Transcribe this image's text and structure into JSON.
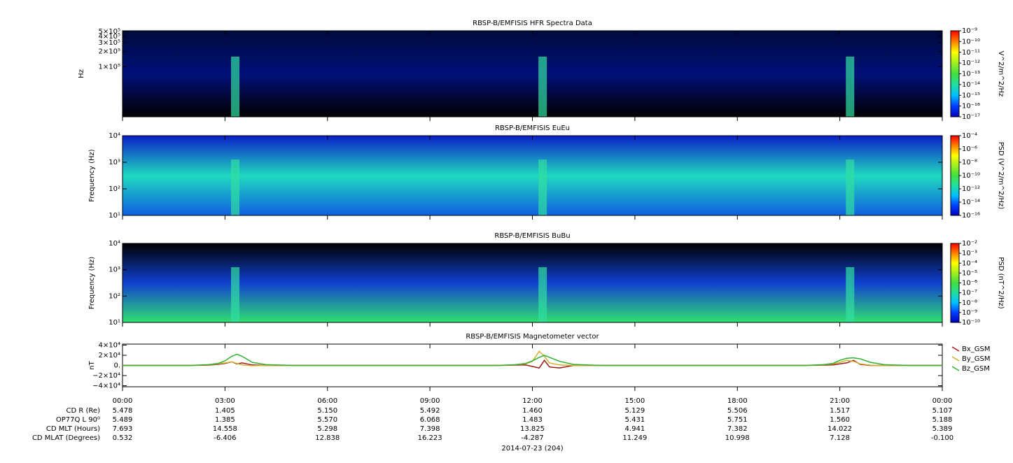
{
  "chart_data": [
    {
      "type": "spectrogram",
      "title": "RBSP-B/EMFISIS  HFR Spectra Data",
      "ylabel": "Hz",
      "log": true,
      "ylim": [
        10000,
        520000
      ],
      "yticks": [
        {
          "value": 100000,
          "label": "1×10⁵"
        },
        {
          "value": 200000,
          "label": "2×10⁵"
        },
        {
          "value": 300000,
          "label": "3×10⁵"
        },
        {
          "value": 400000,
          "label": "4×10⁵"
        },
        {
          "value": 500000,
          "label": "5×10⁵"
        }
      ],
      "colorbar": {
        "label": "V^2/m^2/Hz",
        "clim": [
          1e-17,
          1e-09
        ],
        "ticks": [
          {
            "value": 1e-17,
            "label": "10⁻¹⁷"
          },
          {
            "value": 1e-16,
            "label": "10⁻¹⁶"
          },
          {
            "value": 1e-15,
            "label": "10⁻¹⁵"
          },
          {
            "value": 1e-14,
            "label": "10⁻¹⁴"
          },
          {
            "value": 1e-13,
            "label": "10⁻¹³"
          },
          {
            "value": 1e-12,
            "label": "10⁻¹²"
          },
          {
            "value": 1e-11,
            "label": "10⁻¹¹"
          },
          {
            "value": 1e-10,
            "label": "10⁻¹⁰"
          },
          {
            "value": 1e-09,
            "label": "10⁻⁹"
          }
        ]
      },
      "background": [
        "#000a3a",
        "#00107a",
        "#000000"
      ]
    },
    {
      "type": "spectrogram",
      "title": "RBSP-B/EMFISIS  EuEu",
      "ylabel": "Frequency (Hz)",
      "log": true,
      "ylim": [
        10,
        10000
      ],
      "yticks": [
        {
          "value": 10,
          "label": "10¹"
        },
        {
          "value": 100,
          "label": "10²"
        },
        {
          "value": 1000,
          "label": "10³"
        },
        {
          "value": 10000,
          "label": "10⁴"
        }
      ],
      "colorbar": {
        "label": "PSD (V^2/m^2/Hz)",
        "clim": [
          1e-16,
          0.0001
        ],
        "ticks": [
          {
            "value": 1e-16,
            "label": "10⁻¹⁶"
          },
          {
            "value": 1e-14,
            "label": "10⁻¹⁴"
          },
          {
            "value": 1e-12,
            "label": "10⁻¹²"
          },
          {
            "value": 1e-10,
            "label": "10⁻¹⁰"
          },
          {
            "value": 1e-08,
            "label": "10⁻⁸"
          },
          {
            "value": 1e-06,
            "label": "10⁻⁶"
          },
          {
            "value": 0.0001,
            "label": "10⁻⁴"
          }
        ]
      },
      "background": [
        "#0a1fc8",
        "#20d8c0",
        "#1060e0"
      ]
    },
    {
      "type": "spectrogram",
      "title": "RBSP-B/EMFISIS  BuBu",
      "ylabel": "Frequency (Hz)",
      "log": true,
      "ylim": [
        10,
        10000
      ],
      "yticks": [
        {
          "value": 10,
          "label": "10¹"
        },
        {
          "value": 100,
          "label": "10²"
        },
        {
          "value": 1000,
          "label": "10³"
        },
        {
          "value": 10000,
          "label": "10⁴"
        }
      ],
      "colorbar": {
        "label": "PSD (nT^2/Hz)",
        "clim": [
          1e-10,
          0.01
        ],
        "ticks": [
          {
            "value": 1e-10,
            "label": "10⁻¹⁰"
          },
          {
            "value": 1e-09,
            "label": "10⁻⁹"
          },
          {
            "value": 1e-08,
            "label": "10⁻⁸"
          },
          {
            "value": 1e-07,
            "label": "10⁻⁷"
          },
          {
            "value": 1e-06,
            "label": "10⁻⁶"
          },
          {
            "value": 1e-05,
            "label": "10⁻⁵"
          },
          {
            "value": 0.0001,
            "label": "10⁻⁴"
          },
          {
            "value": 0.001,
            "label": "10⁻³"
          },
          {
            "value": 0.01,
            "label": "10⁻²"
          }
        ]
      },
      "background": [
        "#000000",
        "#1040d0",
        "#30e070"
      ]
    },
    {
      "type": "line",
      "title": "RBSP-B/EMFISIS  Magnetometer vector",
      "ylabel": "nT",
      "xlabel": "2014-07-23 (204)",
      "xlim": [
        0,
        24
      ],
      "xticks": [
        {
          "value": 0,
          "label": "00:00"
        },
        {
          "value": 3,
          "label": "03:00"
        },
        {
          "value": 6,
          "label": "06:00"
        },
        {
          "value": 9,
          "label": "09:00"
        },
        {
          "value": 12,
          "label": "12:00"
        },
        {
          "value": 15,
          "label": "15:00"
        },
        {
          "value": 18,
          "label": "18:00"
        },
        {
          "value": 21,
          "label": "21:00"
        },
        {
          "value": 24,
          "label": "00:00"
        }
      ],
      "ylim": [
        -42000,
        42000
      ],
      "yticks": [
        {
          "value": -40000,
          "label": "−4×10⁴"
        },
        {
          "value": -20000,
          "label": "−2×10⁴"
        },
        {
          "value": 0,
          "label": "0."
        },
        {
          "value": 20000,
          "label": "2×10⁴"
        },
        {
          "value": 40000,
          "label": "4×10⁴"
        }
      ],
      "x": [
        0,
        2,
        2.5,
        2.8,
        3.0,
        3.2,
        3.35,
        3.5,
        3.8,
        4.2,
        5,
        11,
        11.5,
        11.8,
        12.0,
        12.2,
        12.35,
        12.5,
        12.8,
        13.2,
        14,
        20,
        20.5,
        20.8,
        21.0,
        21.2,
        21.4,
        21.6,
        21.9,
        22.3,
        23,
        24
      ],
      "series": [
        {
          "name": "Bx_GSM",
          "color": "#a01818",
          "values": [
            0,
            0,
            500,
            2000,
            4000,
            7000,
            3000,
            5000,
            1000,
            0,
            0,
            0,
            500,
            1000,
            -2000,
            -5000,
            10000,
            -3000,
            -5000,
            0,
            0,
            0,
            500,
            1000,
            3000,
            5000,
            10000,
            2000,
            0,
            0,
            0,
            0
          ]
        },
        {
          "name": "By_GSM",
          "color": "#d0b030",
          "values": [
            0,
            0,
            1000,
            3000,
            5000,
            7000,
            4000,
            1000,
            -500,
            0,
            0,
            0,
            1000,
            3000,
            8000,
            28000,
            18000,
            5000,
            1000,
            0,
            0,
            0,
            1000,
            3000,
            6000,
            10000,
            8000,
            3000,
            500,
            0,
            0,
            0
          ]
        },
        {
          "name": "Bz_GSM",
          "color": "#30b030",
          "values": [
            0,
            0,
            1500,
            4000,
            9000,
            18000,
            22000,
            18000,
            6000,
            1500,
            0,
            0,
            1500,
            4000,
            9000,
            16000,
            20000,
            16000,
            8000,
            2000,
            0,
            0,
            1500,
            4000,
            10000,
            14000,
            15000,
            13000,
            6000,
            1500,
            0,
            0
          ]
        }
      ]
    }
  ],
  "ephemeris": {
    "rows": [
      {
        "label": "CD R (Re)",
        "values": [
          "5.478",
          "1.405",
          "5.150",
          "5.492",
          "1.460",
          "5.129",
          "5.506",
          "1.517",
          "5.107"
        ]
      },
      {
        "label": "OP77Q L 90⁰",
        "values": [
          "5.489",
          "1.385",
          "5.570",
          "6.068",
          "1.483",
          "5.431",
          "5.751",
          "1.560",
          "5.188"
        ]
      },
      {
        "label": "CD MLT (Hours)",
        "values": [
          "7.693",
          "14.558",
          "5.298",
          "7.398",
          "13.825",
          "4.941",
          "7.382",
          "14.022",
          "5.389"
        ]
      },
      {
        "label": "CD MLAT (Degrees)",
        "values": [
          "0.532",
          "-6.406",
          "12.838",
          "16.223",
          "-4.287",
          "11.249",
          "10.998",
          "7.128",
          "-0.100"
        ]
      }
    ]
  },
  "colormap": [
    "#0000c0",
    "#0040ff",
    "#00c0ff",
    "#20e0a0",
    "#40e040",
    "#a0f020",
    "#ffff00",
    "#ff8000",
    "#ff0000"
  ]
}
